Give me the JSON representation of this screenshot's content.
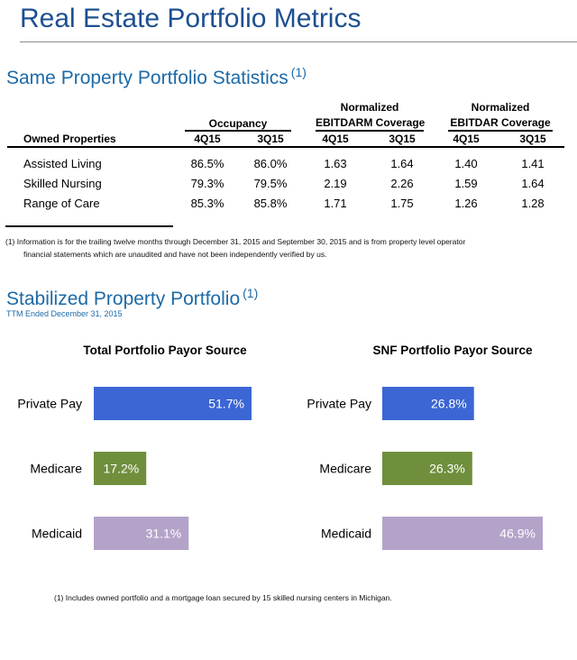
{
  "page": {
    "title": "Real Estate Portfolio Metrics"
  },
  "stats": {
    "title": "Same Property Portfolio Statistics",
    "footnote_mark": "(1)",
    "group_headers": {
      "occupancy": "Occupancy",
      "ebitdarm_line1": "Normalized",
      "ebitdarm_line2": "EBITDARM Coverage",
      "ebitdar_line1": "Normalized",
      "ebitdar_line2": "EBITDAR Coverage"
    },
    "columns": [
      "Owned Properties",
      "4Q15",
      "3Q15",
      "4Q15",
      "3Q15",
      "4Q15",
      "3Q15"
    ],
    "rows": [
      {
        "label": "Assisted Living",
        "values": [
          "86.5%",
          "86.0%",
          "1.63",
          "1.64",
          "1.40",
          "1.41"
        ]
      },
      {
        "label": "Skilled Nursing",
        "values": [
          "79.3%",
          "79.5%",
          "2.19",
          "2.26",
          "1.59",
          "1.64"
        ]
      },
      {
        "label": "Range of Care",
        "values": [
          "85.3%",
          "85.8%",
          "1.71",
          "1.75",
          "1.26",
          "1.28"
        ]
      }
    ],
    "footnote_line1": "(1)  Information is for the trailing twelve months through December 31, 2015 and September 30, 2015 and is from property level operator",
    "footnote_line2": "financial statements which are unaudited and have not been independently verified by us."
  },
  "stabilized": {
    "title": "Stabilized Property Portfolio",
    "footnote_mark": "(1)",
    "subtitle": "TTM Ended December 31, 2015",
    "footnote": "(1)    Includes owned portfolio and a mortgage loan secured by 15 skilled nursing centers in Michigan."
  },
  "chart_data": [
    {
      "type": "bar",
      "orientation": "horizontal",
      "title": "Total Portfolio Payor Source",
      "categories": [
        "Private Pay",
        "Medicare",
        "Medicaid"
      ],
      "values": [
        51.7,
        17.2,
        31.1
      ],
      "labels": [
        "51.7%",
        "17.2%",
        "31.1%"
      ],
      "colors": [
        "#3b66d4",
        "#6f8f3c",
        "#b4a3c9"
      ],
      "xlim": [
        0,
        51.7
      ],
      "grid": false
    },
    {
      "type": "bar",
      "orientation": "horizontal",
      "title": "SNF Portfolio Payor Source",
      "categories": [
        "Private Pay",
        "Medicare",
        "Medicaid"
      ],
      "values": [
        26.8,
        26.3,
        46.9
      ],
      "labels": [
        "26.8%",
        "26.3%",
        "46.9%"
      ],
      "colors": [
        "#3b66d4",
        "#6f8f3c",
        "#b4a3c9"
      ],
      "xlim": [
        0,
        46.9
      ],
      "grid": false
    }
  ]
}
